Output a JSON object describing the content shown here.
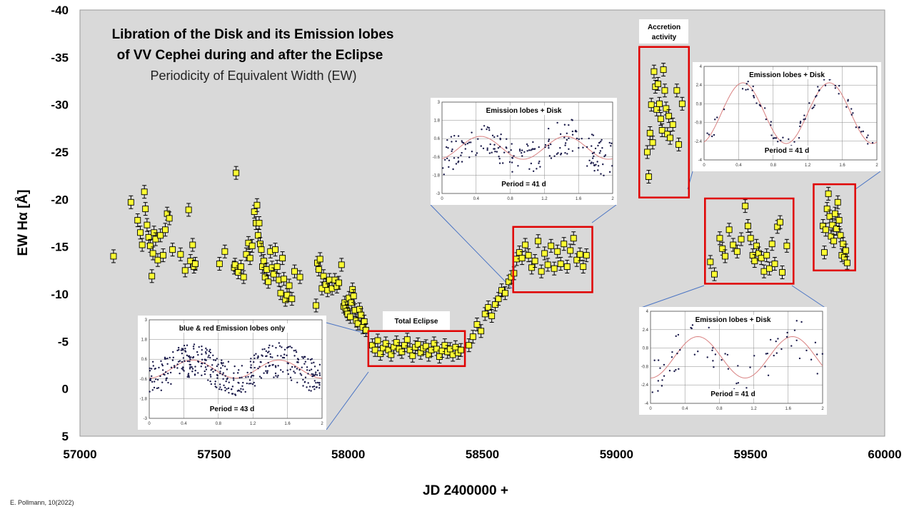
{
  "chart_data": {
    "type": "scatter",
    "title_line1": "Libration of the Disk and its Emission lobes",
    "title_line2": "of VV Cephei during and after the Eclipse",
    "subtitle": "Periodicity of Equivalent Width (EW)",
    "xlabel": "JD 2400000 +",
    "ylabel": "EW Hα [Å]",
    "credit": "E. Pollmann, 10(2022)",
    "xlim": [
      57000,
      60000
    ],
    "ylim": [
      5,
      -40
    ],
    "y_inverted": true,
    "grid": false,
    "x_ticks": [
      "57000",
      "57500",
      "58000",
      "58500",
      "59000",
      "59500",
      "60000"
    ],
    "y_ticks": [
      "-40",
      "-35",
      "-30",
      "-25",
      "-20",
      "-15",
      "-10",
      "-5",
      "0",
      "5"
    ],
    "marker_color": "#ffff33",
    "plot_bg": "#d9d9d9",
    "highlight_color": "#e00000",
    "series": [
      {
        "values": [
          [
            57125,
            -14
          ],
          [
            57190,
            -19.7
          ],
          [
            57215,
            -17.8
          ],
          [
            57225,
            -16.5
          ],
          [
            57232,
            -15.2
          ],
          [
            57240,
            -20.8
          ],
          [
            57244,
            -19
          ],
          [
            57250,
            -17.3
          ],
          [
            57256,
            -16
          ],
          [
            57262,
            -15.1
          ],
          [
            57268,
            -11.9
          ],
          [
            57272,
            -14.3
          ],
          [
            57276,
            -16.5
          ],
          [
            57282,
            -15.8
          ],
          [
            57290,
            -13.6
          ],
          [
            57300,
            -16.2
          ],
          [
            57310,
            -14.1
          ],
          [
            57318,
            -16.8
          ],
          [
            57325,
            -18.5
          ],
          [
            57333,
            -18
          ],
          [
            57345,
            -14.7
          ],
          [
            57375,
            -14.2
          ],
          [
            57392,
            -12.5
          ],
          [
            57405,
            -18.9
          ],
          [
            57412,
            -13.5
          ],
          [
            57420,
            -15.2
          ],
          [
            57425,
            -12.9
          ],
          [
            57430,
            -13.2
          ],
          [
            57520,
            -13.2
          ],
          [
            57540,
            -14.5
          ],
          [
            57575,
            -12.8
          ],
          [
            57578,
            -13.1
          ],
          [
            57582,
            -22.8
          ],
          [
            57590,
            -12.3
          ],
          [
            57600,
            -12.9
          ],
          [
            57610,
            -11.8
          ],
          [
            57620,
            -14.2
          ],
          [
            57628,
            -15.4
          ],
          [
            57634,
            -13.8
          ],
          [
            57642,
            -15.1
          ],
          [
            57650,
            -18.7
          ],
          [
            57656,
            -17.5
          ],
          [
            57660,
            -19.4
          ],
          [
            57664,
            -16.2
          ],
          [
            57668,
            -17.5
          ],
          [
            57672,
            -15.3
          ],
          [
            57676,
            -14.7
          ],
          [
            57680,
            -12.9
          ],
          [
            57685,
            -13.5
          ],
          [
            57690,
            -11.8
          ],
          [
            57696,
            -12.6
          ],
          [
            57702,
            -11.3
          ],
          [
            57710,
            -14.5
          ],
          [
            57716,
            -12.8
          ],
          [
            57722,
            -12.1
          ],
          [
            57728,
            -14.7
          ],
          [
            57735,
            -12.9
          ],
          [
            57742,
            -11.5
          ],
          [
            57748,
            -10.1
          ],
          [
            57755,
            -13.8
          ],
          [
            57760,
            -11.6
          ],
          [
            57766,
            -9.4
          ],
          [
            57772,
            -9.9
          ],
          [
            57780,
            -10.9
          ],
          [
            57790,
            -9.5
          ],
          [
            57800,
            -12.4
          ],
          [
            57820,
            -11.8
          ],
          [
            57880,
            -8.8
          ],
          [
            57885,
            -13.3
          ],
          [
            57890,
            -12.6
          ],
          [
            57895,
            -13.7
          ],
          [
            57902,
            -10.6
          ],
          [
            57908,
            -11.9
          ],
          [
            57916,
            -11
          ],
          [
            57923,
            -10.4
          ],
          [
            57930,
            -11.5
          ],
          [
            57940,
            -10.6
          ],
          [
            57950,
            -11.5
          ],
          [
            57958,
            -10.8
          ],
          [
            57965,
            -11.2
          ],
          [
            57975,
            -13.1
          ],
          [
            57983,
            -8.7
          ],
          [
            57987,
            -9.1
          ],
          [
            57990,
            -8.5
          ],
          [
            57995,
            -8.2
          ],
          [
            57998,
            -7.9
          ],
          [
            58003,
            -9.6
          ],
          [
            58008,
            -7.6
          ],
          [
            58012,
            -9.1
          ],
          [
            58016,
            -10.5
          ],
          [
            58020,
            -9.8
          ],
          [
            58025,
            -8.3
          ],
          [
            58030,
            -7.2
          ],
          [
            58036,
            -6.9
          ],
          [
            58042,
            -8.4
          ],
          [
            58048,
            -7.8
          ],
          [
            58054,
            -6.5
          ],
          [
            58060,
            -7.1
          ],
          [
            58066,
            -6.2
          ]
        ]
      },
      {
        "values": [
          [
            58090,
            -4.6
          ],
          [
            58100,
            -4.1
          ],
          [
            58110,
            -5.1
          ],
          [
            58120,
            -3.7
          ],
          [
            58130,
            -4.3
          ],
          [
            58140,
            -4.8
          ],
          [
            58150,
            -4.1
          ],
          [
            58160,
            -3.6
          ],
          [
            58170,
            -4.4
          ],
          [
            58180,
            -4.9
          ],
          [
            58190,
            -4.2
          ],
          [
            58200,
            -3.9
          ],
          [
            58210,
            -4.6
          ],
          [
            58220,
            -5.2
          ],
          [
            58230,
            -4.1
          ],
          [
            58240,
            -3.5
          ],
          [
            58250,
            -4.4
          ],
          [
            58260,
            -4.7
          ],
          [
            58270,
            -3.8
          ],
          [
            58280,
            -4.3
          ],
          [
            58290,
            -4.5
          ],
          [
            58300,
            -3.6
          ],
          [
            58310,
            -4.1
          ],
          [
            58320,
            -4.8
          ],
          [
            58330,
            -4.2
          ],
          [
            58340,
            -3.4
          ],
          [
            58350,
            -4.0
          ],
          [
            58360,
            -4.6
          ],
          [
            58370,
            -3.9
          ],
          [
            58380,
            -4.2
          ],
          [
            58390,
            -3.6
          ],
          [
            58400,
            -4.4
          ],
          [
            58410,
            -3.8
          ],
          [
            58420,
            -4.1
          ]
        ]
      },
      {
        "values": [
          [
            58450,
            -4.6
          ],
          [
            58465,
            -5.5
          ],
          [
            58480,
            -6.8
          ],
          [
            58495,
            -6.1
          ],
          [
            58510,
            -7.9
          ],
          [
            58522,
            -8.6
          ],
          [
            58535,
            -7.7
          ],
          [
            58548,
            -8.9
          ],
          [
            58560,
            -9.5
          ],
          [
            58572,
            -10.4
          ],
          [
            58585,
            -10.1
          ],
          [
            58598,
            -11.3
          ],
          [
            58608,
            -11.8
          ],
          [
            58618,
            -12.2
          ],
          [
            58628,
            -13.7
          ],
          [
            58638,
            -14.4
          ],
          [
            58648,
            -13.8
          ],
          [
            58660,
            -15.2
          ],
          [
            58672,
            -14.1
          ],
          [
            58684,
            -12.8
          ],
          [
            58696,
            -13.5
          ],
          [
            58708,
            -15.6
          ],
          [
            58720,
            -12.4
          ],
          [
            58732,
            -14.3
          ],
          [
            58744,
            -13.1
          ],
          [
            58756,
            -15.1
          ],
          [
            58768,
            -12.7
          ],
          [
            58780,
            -14.5
          ],
          [
            58792,
            -13.2
          ],
          [
            58804,
            -15.3
          ],
          [
            58816,
            -12.9
          ],
          [
            58828,
            -14.6
          ],
          [
            58840,
            -15.9
          ],
          [
            58852,
            -13.6
          ],
          [
            58864,
            -14.2
          ],
          [
            58876,
            -12.9
          ],
          [
            58888,
            -14.1
          ]
        ]
      },
      {
        "values": [
          [
            59115,
            -25
          ],
          [
            59120,
            -22.4
          ],
          [
            59125,
            -27
          ],
          [
            59130,
            -30
          ],
          [
            59135,
            -26
          ],
          [
            59140,
            -33.5
          ],
          [
            59145,
            -31.9
          ],
          [
            59150,
            -29.5
          ],
          [
            59155,
            -32.2
          ],
          [
            59160,
            -30.1
          ],
          [
            59165,
            -28.5
          ],
          [
            59170,
            -27.3
          ],
          [
            59175,
            -33.7
          ],
          [
            59180,
            -31.5
          ],
          [
            59185,
            -29.6
          ],
          [
            59190,
            -26.9
          ],
          [
            59195,
            -28.8
          ],
          [
            59200,
            -26.5
          ],
          [
            59210,
            -27.9
          ],
          [
            59225,
            -31.5
          ],
          [
            59232,
            -25.8
          ],
          [
            59245,
            -30.1
          ]
        ]
      },
      {
        "values": [
          [
            59350,
            -13.4
          ],
          [
            59365,
            -12.1
          ],
          [
            59385,
            -15.9
          ],
          [
            59395,
            -14.8
          ],
          [
            59405,
            -14
          ],
          [
            59420,
            -16.8
          ],
          [
            59435,
            -15.2
          ],
          [
            59450,
            -14.5
          ],
          [
            59465,
            -15.8
          ],
          [
            59480,
            -19.3
          ],
          [
            59490,
            -17.2
          ],
          [
            59500,
            -15.9
          ],
          [
            59508,
            -14.1
          ],
          [
            59515,
            -13.5
          ],
          [
            59522,
            -15.1
          ],
          [
            59530,
            -14.3
          ],
          [
            59540,
            -13.8
          ],
          [
            59550,
            -12.4
          ],
          [
            59560,
            -14.1
          ],
          [
            59570,
            -12.7
          ],
          [
            59580,
            -15.3
          ],
          [
            59590,
            -13.2
          ],
          [
            59600,
            -17.1
          ],
          [
            59610,
            -17.6
          ],
          [
            59618,
            -12.3
          ],
          [
            59635,
            -15.1
          ]
        ]
      },
      {
        "values": [
          [
            59770,
            -17.2
          ],
          [
            59775,
            -14.4
          ],
          [
            59780,
            -16.8
          ],
          [
            59785,
            -19
          ],
          [
            59790,
            -20.6
          ],
          [
            59795,
            -18.2
          ],
          [
            59800,
            -16.1
          ],
          [
            59805,
            -17.3
          ],
          [
            59810,
            -15.6
          ],
          [
            59815,
            -18.5
          ],
          [
            59820,
            -16.9
          ],
          [
            59825,
            -19.7
          ],
          [
            59830,
            -17.8
          ],
          [
            59835,
            -16.2
          ],
          [
            59840,
            -14.1
          ],
          [
            59845,
            -15.3
          ],
          [
            59850,
            -13.9
          ],
          [
            59855,
            -14.6
          ],
          [
            59860,
            -13.3
          ]
        ]
      }
    ],
    "highlight_boxes": [
      {
        "x0": 58075,
        "x1": 58435,
        "y0": -2.4,
        "y1": -6.1,
        "label": "Total Eclipse"
      },
      {
        "x0": 58615,
        "x1": 58910,
        "y0": -10.2,
        "y1": -17.1,
        "label": ""
      },
      {
        "x0": 59085,
        "x1": 59270,
        "y0": -20.2,
        "y1": -36.1,
        "label": "Accretion activity"
      },
      {
        "x0": 59330,
        "x1": 59660,
        "y0": -11.1,
        "y1": -20.1,
        "label": ""
      },
      {
        "x0": 59735,
        "x1": 59890,
        "y0": -12.5,
        "y1": -21.6,
        "label": ""
      }
    ],
    "insets": [
      {
        "title": "Emission lobes + Disk",
        "period_label": "Period = 41 d",
        "x_ticks": [
          "0",
          "0.4",
          "0.8",
          "1.2",
          "1.6",
          "2"
        ],
        "y_ticks": [
          "3",
          "1.8",
          "0.6",
          "-0.6",
          "-1.8",
          "-3"
        ],
        "ylim": [
          -3,
          3
        ],
        "amplitude": 0.75,
        "period": 1.0,
        "phase_min": 0.45,
        "n_points": 190,
        "scatter": 1.5
      },
      {
        "title": "blue & red Emission lobes only",
        "period_label": "Period = 43 d",
        "x_ticks": [
          "0",
          "0.4",
          "0.8",
          "1.2",
          "1.6",
          "2"
        ],
        "y_ticks": [
          "3",
          "1.8",
          "0.6",
          "-0.6",
          "-1.8",
          "-3"
        ],
        "ylim": [
          -3,
          3
        ],
        "amplitude": 0.55,
        "period": 1.0,
        "phase_min": 0.5,
        "n_points": 380,
        "scatter": 1.3
      },
      {
        "title": "Emission lobes + Disk",
        "period_label": "Period = 41 d",
        "x_ticks": [
          "0",
          "0.4",
          "0.8",
          "1.2",
          "1.6",
          "2"
        ],
        "y_ticks": [
          "4",
          "2.4",
          "0.8",
          "-0.8",
          "-2.4",
          "-4"
        ],
        "ylim": [
          -4,
          4
        ],
        "amplitude": 2.6,
        "period": 1.0,
        "phase_min": 0.45,
        "n_points": 75,
        "scatter": 0.8
      },
      {
        "title": "Emission lobes + Disk",
        "period_label": "Period = 41 d",
        "x_ticks": [
          "0",
          "0.4",
          "0.8",
          "1.2",
          "1.6",
          "2"
        ],
        "y_ticks": [
          "4",
          "2.4",
          "0.8",
          "-0.8",
          "-2.4",
          "-4"
        ],
        "ylim": [
          -4,
          4
        ],
        "amplitude": 1.8,
        "period": 1.1,
        "phase_min": 0.5,
        "n_points": 70,
        "scatter": 2.2
      }
    ]
  }
}
